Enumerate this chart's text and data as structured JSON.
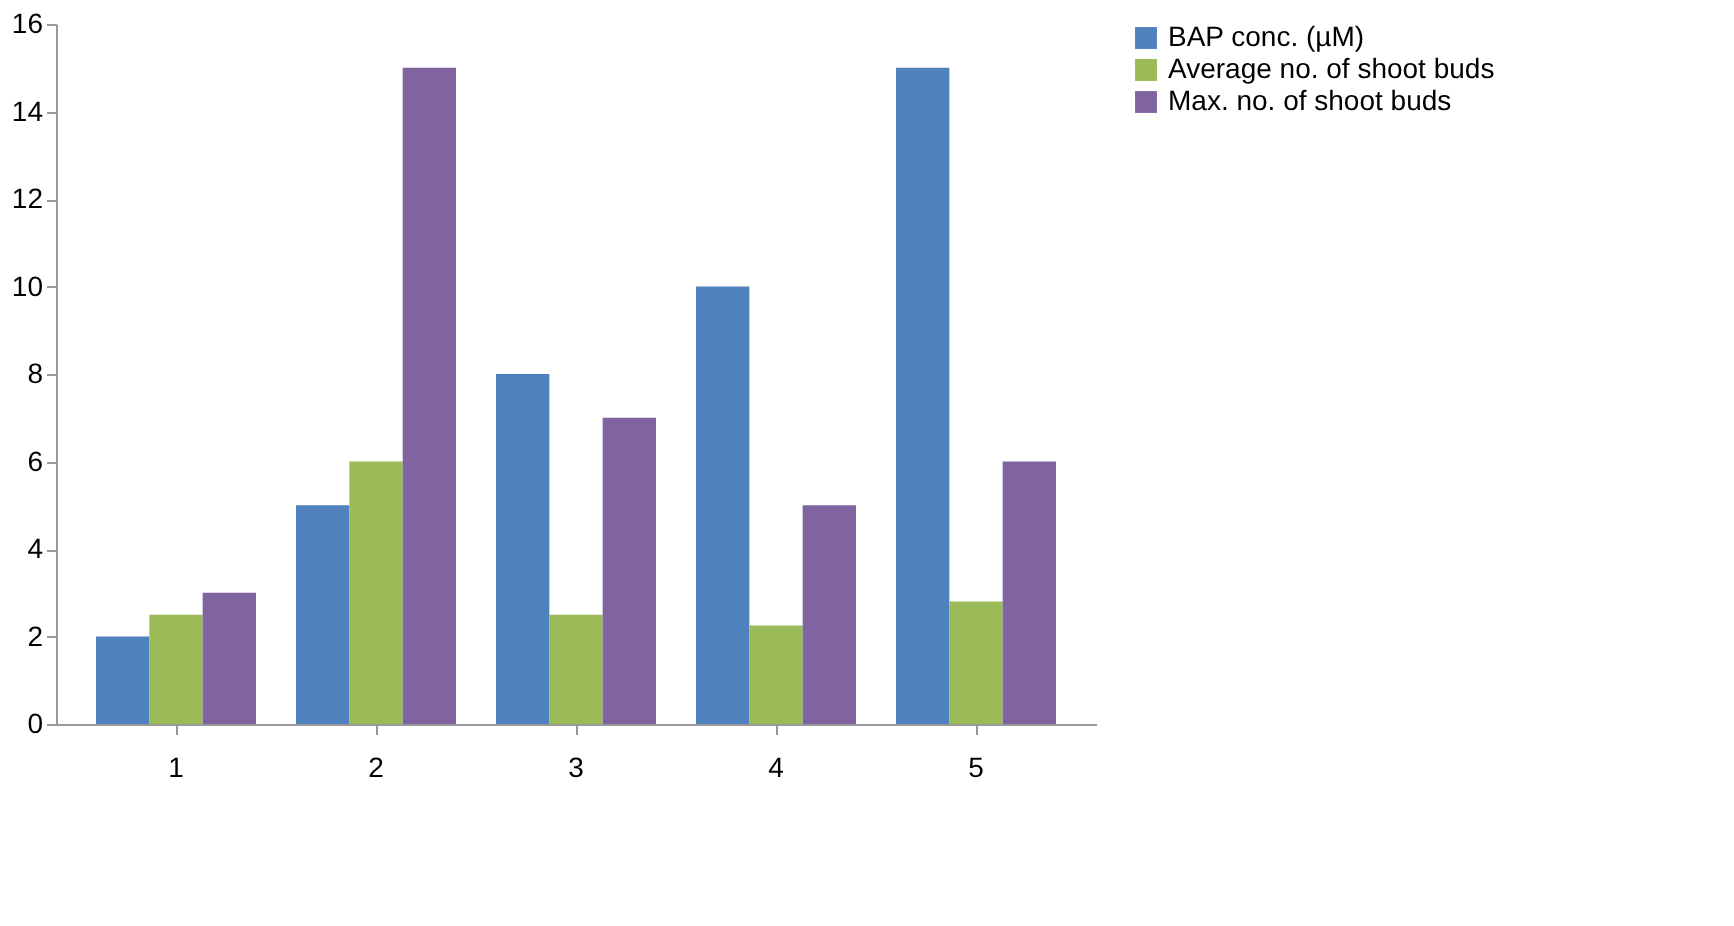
{
  "chart_data": {
    "type": "bar",
    "categories": [
      "1",
      "2",
      "3",
      "4",
      "5"
    ],
    "series": [
      {
        "name": "BAP conc. (µM)",
        "color": "#4f81bd",
        "values": [
          2,
          5,
          8,
          10,
          15
        ]
      },
      {
        "name": "Average no. of shoot buds",
        "color": "#9bbb59",
        "values": [
          2.5,
          6,
          2.5,
          2.25,
          2.8
        ]
      },
      {
        "name": "Max. no. of shoot buds",
        "color": "#8064a2",
        "values": [
          3,
          15,
          7,
          5,
          6
        ]
      }
    ],
    "ylim": [
      0,
      16
    ],
    "yticks": [
      0,
      2,
      4,
      6,
      8,
      10,
      12,
      14,
      16
    ],
    "grid": false,
    "legend": "right"
  }
}
